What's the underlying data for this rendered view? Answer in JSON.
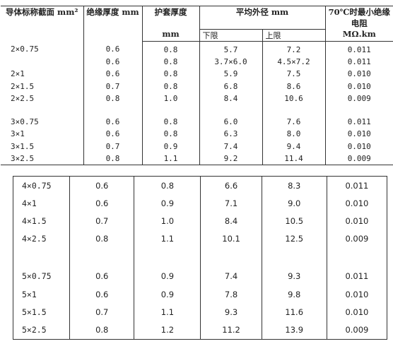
{
  "header": {
    "conductor": "导体标称截面 mm²",
    "insulation": "绝缘厚度 mm",
    "sheath": "护套厚度",
    "sheath_unit": "mm",
    "avg_od": "平均外径 mm",
    "lower": "下限",
    "upper": "上限",
    "resistance": "70℃时最小绝缘电阻",
    "resistance_unit": "MΩ.km"
  },
  "upper_rows": [
    [
      "2×0.75",
      "0.6",
      "0.8",
      "5.7",
      "7.2",
      "0.011"
    ],
    [
      "",
      "0.6",
      "0.8",
      "3.7×6.0",
      "4.5×7.2",
      "0.011"
    ],
    [
      "2×1",
      "0.6",
      "0.8",
      "5.9",
      "7.5",
      "0.010"
    ],
    [
      "2×1.5",
      "0.7",
      "0.8",
      "6.8",
      "8.6",
      "0.010"
    ],
    [
      "2×2.5",
      "0.8",
      "1.0",
      "8.4",
      "10.6",
      "0.009"
    ],
    [
      "3×0.75",
      "0.6",
      "0.8",
      "6.0",
      "7.6",
      "0.011"
    ],
    [
      "3×1",
      "0.6",
      "0.8",
      "6.3",
      "8.0",
      "0.010"
    ],
    [
      "3×1.5",
      "0.7",
      "0.9",
      "7.4",
      "9.4",
      "0.010"
    ],
    [
      "3×2.5",
      "0.8",
      "1.1",
      "9.2",
      "11.4",
      "0.009"
    ]
  ],
  "lower_rows": [
    [
      "4×0.75",
      "0.6",
      "0.8",
      "6.6",
      "8.3",
      "0.011"
    ],
    [
      "4×1",
      "0.6",
      "0.9",
      "7.1",
      "9.0",
      "0.010"
    ],
    [
      "4×1.5",
      "0.7",
      "1.0",
      "8.4",
      "10.5",
      "0.010"
    ],
    [
      "4×2.5",
      "0.8",
      "1.1",
      "10.1",
      "12.5",
      "0.009"
    ],
    [
      "5×0.75",
      "0.6",
      "0.9",
      "7.4",
      "9.3",
      "0.011"
    ],
    [
      "5×1",
      "0.6",
      "0.9",
      "7.8",
      "9.8",
      "0.010"
    ],
    [
      "5×1.5",
      "0.7",
      "1.1",
      "9.3",
      "11.6",
      "0.010"
    ],
    [
      "5×2.5",
      "0.8",
      "1.2",
      "11.2",
      "13.9",
      "0.009"
    ]
  ]
}
